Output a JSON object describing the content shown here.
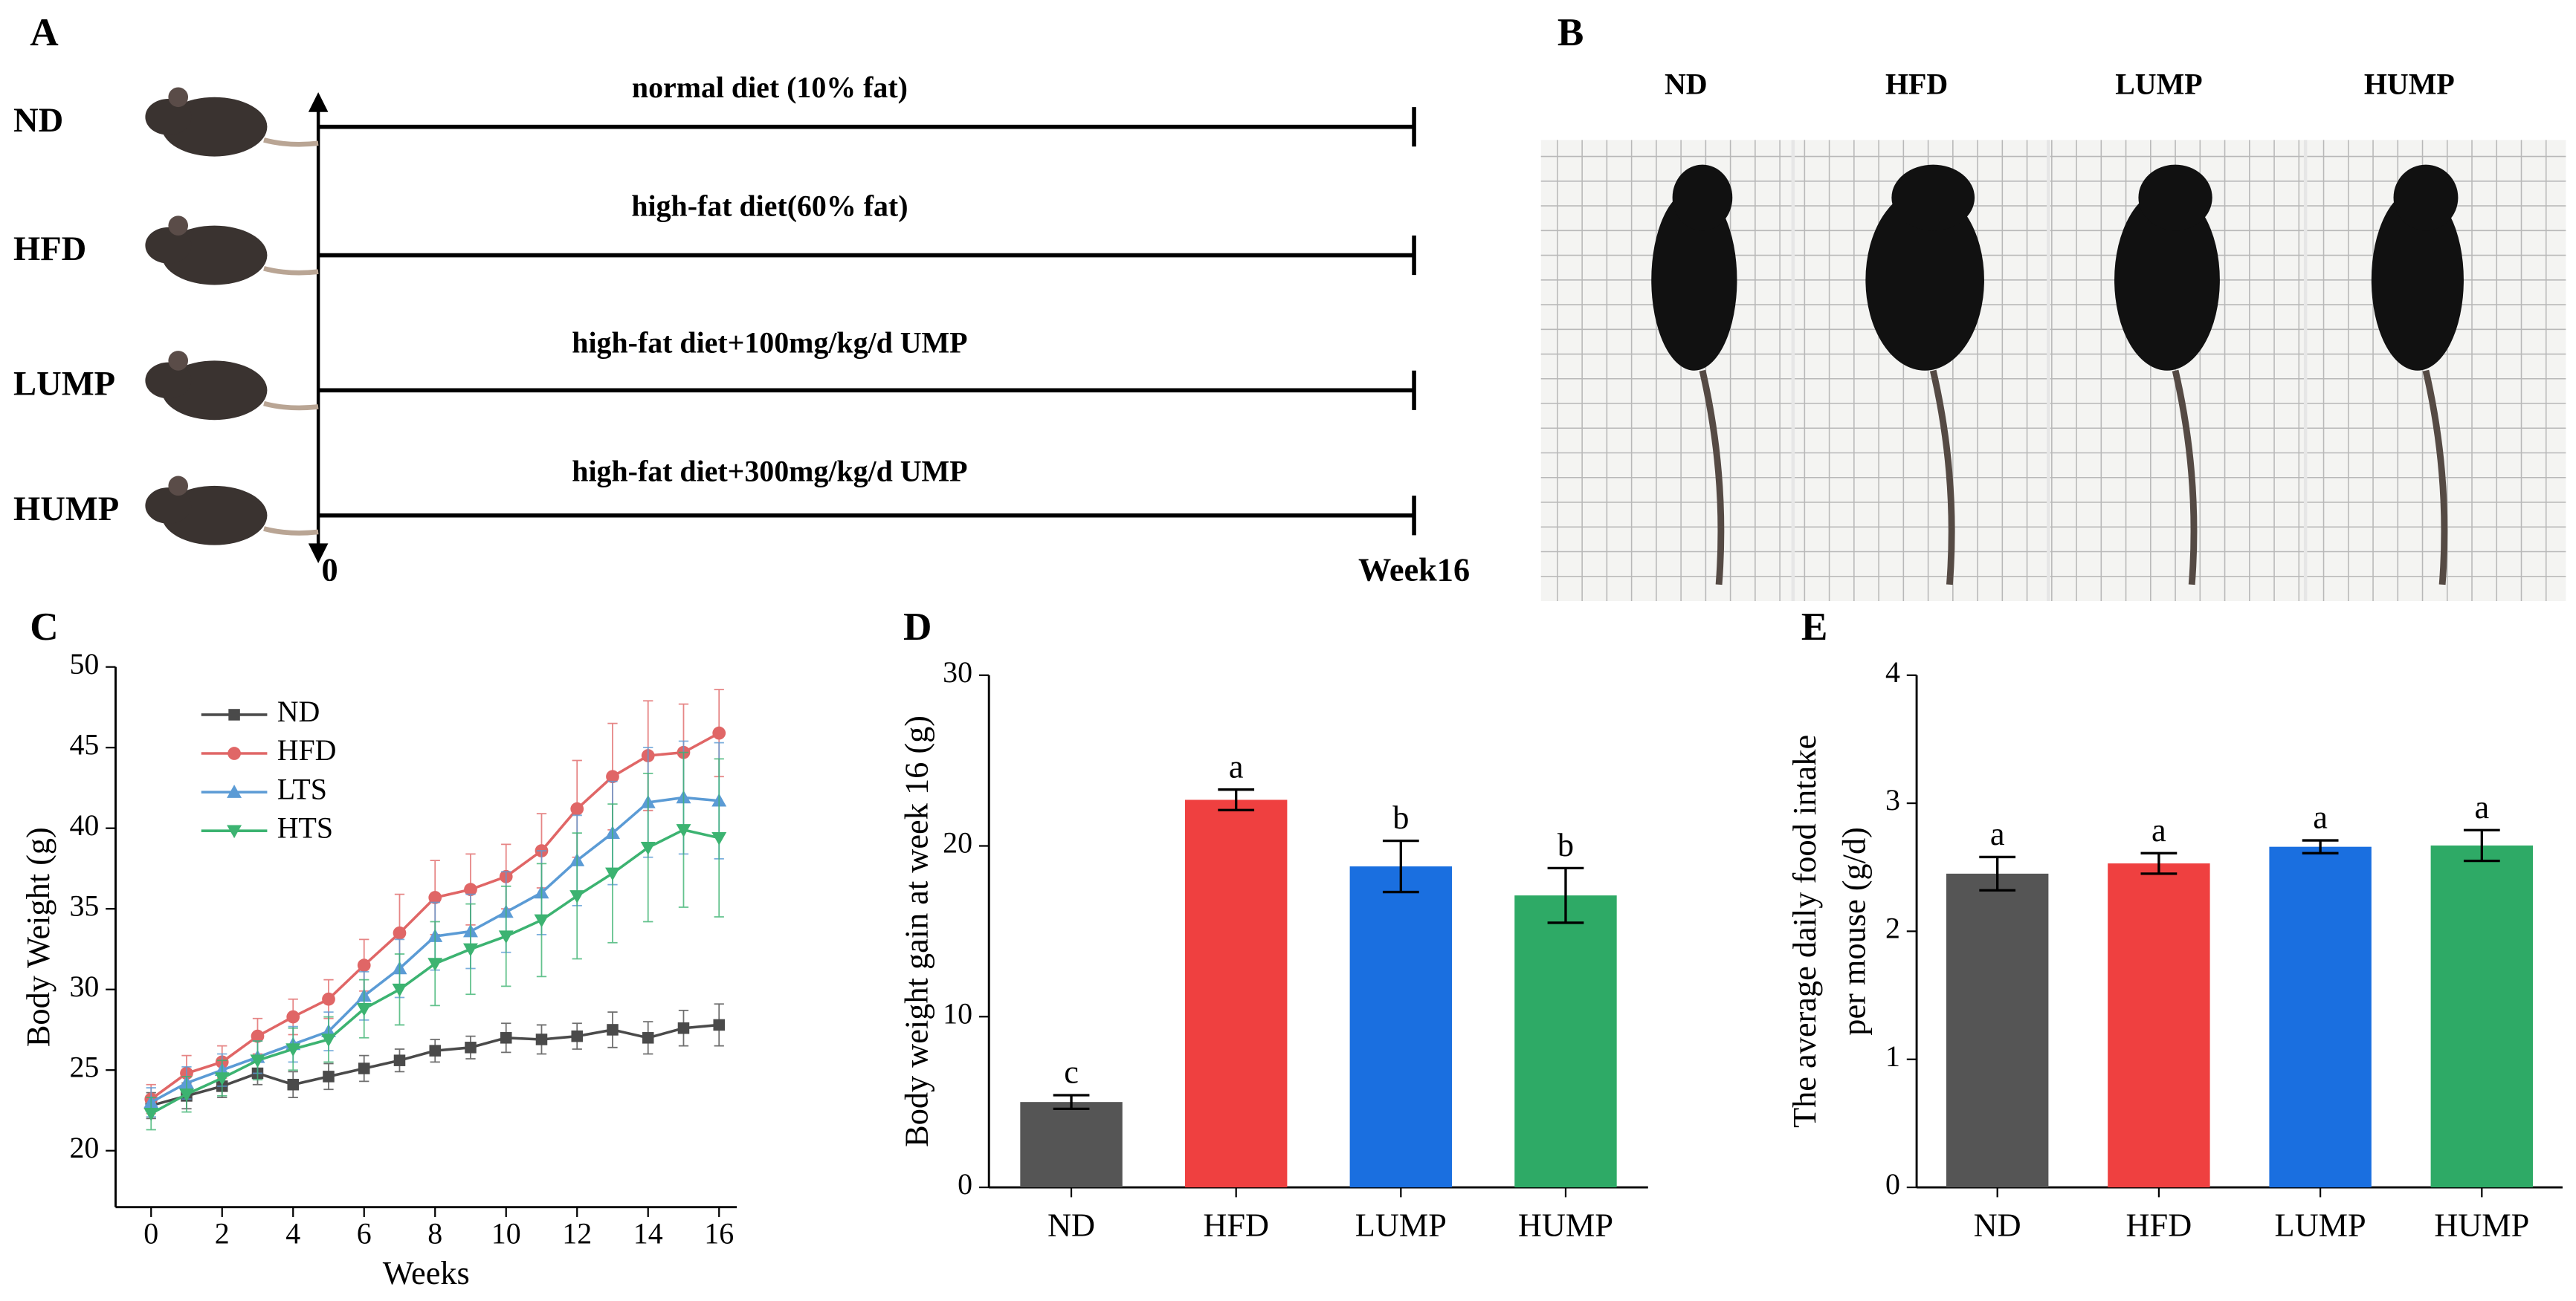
{
  "panel_labels": [
    "A",
    "B",
    "C",
    "D",
    "E"
  ],
  "diagram": {
    "groups": [
      {
        "label": "ND",
        "diet": "normal diet (10% fat)"
      },
      {
        "label": "HFD",
        "diet": "high-fat diet(60% fat)"
      },
      {
        "label": "LUMP",
        "diet": "high-fat diet+100mg/kg/d UMP"
      },
      {
        "label": "HUMP",
        "diet": "high-fat diet+300mg/kg/d UMP"
      }
    ],
    "start": "0",
    "end": "Week16"
  },
  "photo": {
    "labels": [
      "ND",
      "HFD",
      "LUMP",
      "HUMP"
    ]
  },
  "chart_data": [
    {
      "type": "line",
      "xlabel": "Weeks",
      "ylabel": "Body Weight (g)",
      "x": [
        0,
        1,
        2,
        3,
        4,
        5,
        6,
        7,
        8,
        9,
        10,
        11,
        12,
        13,
        14,
        15,
        16
      ],
      "xlim": [
        -1,
        16.5
      ],
      "xticks": [
        0,
        2,
        4,
        6,
        8,
        10,
        12,
        14,
        16
      ],
      "ylim": [
        16.5,
        50
      ],
      "yticks": [
        20,
        25,
        30,
        35,
        40,
        45,
        50
      ],
      "series": [
        {
          "name": "ND",
          "color": "#4a4a4a",
          "marker": "square",
          "values": [
            22.8,
            23.4,
            24.0,
            24.8,
            24.1,
            24.6,
            25.1,
            25.6,
            26.2,
            26.4,
            27.0,
            26.9,
            27.1,
            27.5,
            27.0,
            27.6,
            27.8
          ],
          "errors": [
            0.8,
            0.8,
            0.7,
            0.7,
            0.8,
            0.8,
            0.8,
            0.7,
            0.7,
            0.7,
            0.9,
            0.9,
            0.8,
            1.1,
            1.0,
            1.1,
            1.3
          ]
        },
        {
          "name": "HFD",
          "color": "#e06666",
          "marker": "circle",
          "values": [
            23.2,
            24.8,
            25.5,
            27.1,
            28.3,
            29.4,
            31.5,
            33.5,
            35.7,
            36.2,
            37.0,
            38.6,
            41.2,
            43.2,
            44.5,
            44.7,
            45.9
          ],
          "errors": [
            0.9,
            1.1,
            1.0,
            1.1,
            1.1,
            1.2,
            1.6,
            2.4,
            2.3,
            2.2,
            2.0,
            2.3,
            3.0,
            3.3,
            3.4,
            3.0,
            2.7
          ]
        },
        {
          "name": "LTS",
          "color": "#5b9bd5",
          "marker": "triangle-up",
          "values": [
            23.0,
            24.2,
            25.0,
            25.8,
            26.6,
            27.4,
            29.6,
            31.3,
            33.3,
            33.6,
            34.8,
            36.0,
            38.0,
            39.7,
            41.6,
            41.9,
            41.7
          ],
          "errors": [
            0.9,
            1.0,
            1.0,
            1.0,
            1.1,
            1.2,
            1.5,
            1.8,
            2.1,
            2.3,
            2.5,
            2.6,
            2.8,
            3.2,
            3.4,
            3.5,
            3.6
          ]
        },
        {
          "name": "HTS",
          "color": "#3cb371",
          "marker": "triangle-down",
          "values": [
            22.3,
            23.5,
            24.5,
            25.6,
            26.3,
            26.9,
            28.8,
            30.0,
            31.6,
            32.5,
            33.3,
            34.3,
            35.8,
            37.2,
            38.8,
            39.9,
            39.4
          ],
          "errors": [
            1.0,
            1.1,
            1.1,
            1.2,
            1.3,
            1.4,
            1.8,
            2.2,
            2.6,
            2.8,
            3.1,
            3.5,
            3.9,
            4.3,
            4.6,
            4.8,
            4.9
          ]
        }
      ],
      "legend": "upper-left"
    },
    {
      "type": "bar",
      "ylabel": "Body weight gain at week 16 (g)",
      "categories": [
        "ND",
        "HFD",
        "LUMP",
        "HUMP"
      ],
      "values": [
        5.0,
        22.7,
        18.8,
        17.1
      ],
      "errors": [
        0.4,
        0.6,
        1.5,
        1.6
      ],
      "annotations": [
        "c",
        "a",
        "b",
        "b"
      ],
      "colors": [
        "#555555",
        "#ef4040",
        "#1a6fe0",
        "#2eaa66"
      ],
      "ylim": [
        0,
        30
      ],
      "yticks": [
        0,
        10,
        20,
        30
      ]
    },
    {
      "type": "bar",
      "ylabel": [
        "The average daily food intake",
        "per mouse (g/d)"
      ],
      "categories": [
        "ND",
        "HFD",
        "LUMP",
        "HUMP"
      ],
      "values": [
        2.45,
        2.53,
        2.66,
        2.67
      ],
      "errors": [
        0.13,
        0.08,
        0.05,
        0.12
      ],
      "annotations": [
        "a",
        "a",
        "a",
        "a"
      ],
      "colors": [
        "#555555",
        "#ef4040",
        "#1a6fe0",
        "#2eaa66"
      ],
      "ylim": [
        0,
        4
      ],
      "yticks": [
        0,
        1,
        2,
        3,
        4
      ]
    }
  ]
}
